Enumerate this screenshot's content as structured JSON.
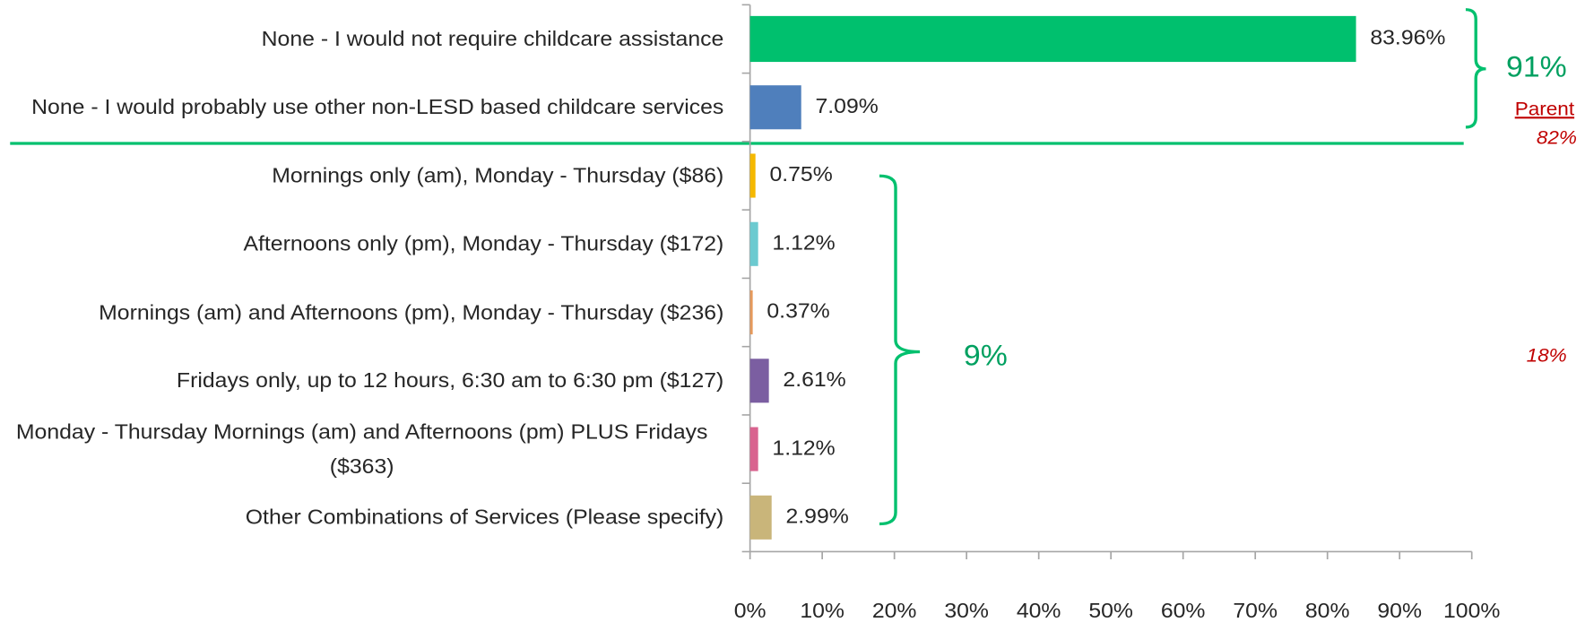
{
  "chart_data": {
    "type": "barh",
    "categories": [
      "None - I would not require childcare assistance",
      "None - I would probably use other non-LESD based childcare services",
      "Mornings only (am), Monday - Thursday ($86)",
      "Afternoons only (pm), Monday - Thursday ($172)",
      "Mornings (am) and Afternoons (pm), Monday - Thursday ($236)",
      "Fridays only, up to 12 hours, 6:30 am to 6:30 pm ($127)",
      "Monday - Thursday Mornings (am) and Afternoons (pm) PLUS Fridays ($363)",
      "Other Combinations of Services (Please specify)"
    ],
    "values": [
      83.96,
      7.09,
      0.75,
      1.12,
      0.37,
      2.61,
      1.12,
      2.99
    ],
    "value_labels": [
      "83.96%",
      "7.09%",
      "0.75%",
      "1.12%",
      "0.37%",
      "2.61%",
      "1.12%",
      "2.99%"
    ],
    "colors": [
      "#00c06e",
      "#4f7fbc",
      "#f5b800",
      "#6ccad0",
      "#e69a5c",
      "#7b5ea1",
      "#d9638f",
      "#c9b57a"
    ],
    "xlim": [
      0,
      100
    ],
    "xticks": [
      {
        "value": 0,
        "label": "0%"
      },
      {
        "value": 10,
        "label": "10%"
      },
      {
        "value": 20,
        "label": "20%"
      },
      {
        "value": 30,
        "label": "30%"
      },
      {
        "value": 40,
        "label": "40%"
      },
      {
        "value": 50,
        "label": "50%"
      },
      {
        "value": 60,
        "label": "60%"
      },
      {
        "value": 70,
        "label": "70%"
      },
      {
        "value": 80,
        "label": "80%"
      },
      {
        "value": 90,
        "label": "90%"
      },
      {
        "value": 100,
        "label": "100%"
      }
    ],
    "annotations": [
      "91%",
      "Parent",
      "82%",
      "9%",
      "18%"
    ]
  }
}
